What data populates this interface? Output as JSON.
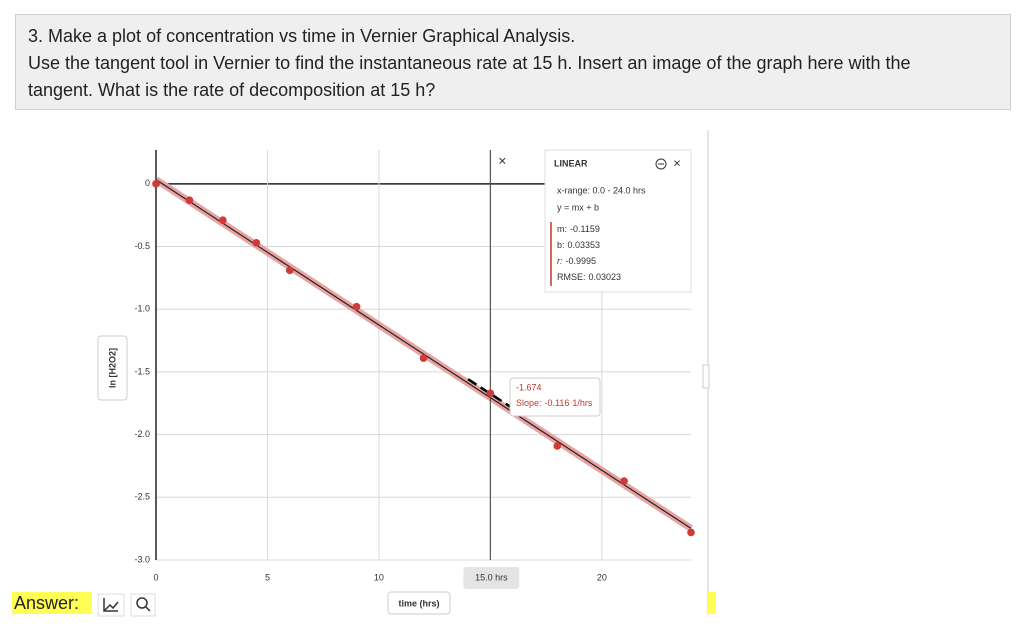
{
  "question": {
    "lines": [
      "3. Make a plot of concentration vs time in Vernier Graphical Analysis.",
      "Use the tangent tool in Vernier to find the instantaneous rate at 15 h. Insert an image of the graph here with the",
      "tangent. What is the rate of decomposition at 15 h?"
    ]
  },
  "answer_label": "Answer:",
  "chart_data": {
    "type": "scatter",
    "x_label": "time (hrs)",
    "y_label": "ln [H2O2]",
    "x": [
      0,
      1.5,
      3,
      4.5,
      6,
      9,
      12,
      15,
      18,
      21,
      24
    ],
    "series": [
      {
        "name": "ln [H2O2]",
        "color": "#d03a3a",
        "values": [
          0,
          -0.13,
          -0.29,
          -0.47,
          -0.69,
          -0.98,
          -1.39,
          -1.67,
          -2.09,
          -2.37,
          -2.78
        ]
      }
    ],
    "xlim": [
      0,
      24
    ],
    "ylim": [
      -3.0,
      0.27
    ],
    "xticks": [
      0,
      5,
      10,
      20
    ],
    "yticks": [
      0,
      {
        "value": -0.5,
        "label": "-0.5"
      },
      {
        "value": -1,
        "label": "-1.0"
      },
      {
        "value": -1.5,
        "label": "-1.5"
      },
      {
        "value": -2,
        "label": "-2.0"
      },
      {
        "value": -2.5,
        "label": "-2.5"
      },
      {
        "value": -3,
        "label": "-3.0"
      }
    ],
    "grid": true,
    "fit": {
      "title": "LINEAR",
      "x_range": "x-range: 0.0 - 24.0 hrs",
      "equation": "y = mx + b",
      "m_label": "m:",
      "m": -0.1159,
      "b_label": "b:",
      "b": 0.03353,
      "r_label": "r:",
      "r": -0.9995,
      "rmse_label": "RMSE:",
      "rmse": 0.03023
    },
    "tangent": {
      "x": 15,
      "x_label": "15.0 hrs",
      "value": -1.674,
      "slope_prefix": "Slope:",
      "slope": -0.116,
      "slope_unit": "1/hrs"
    }
  }
}
